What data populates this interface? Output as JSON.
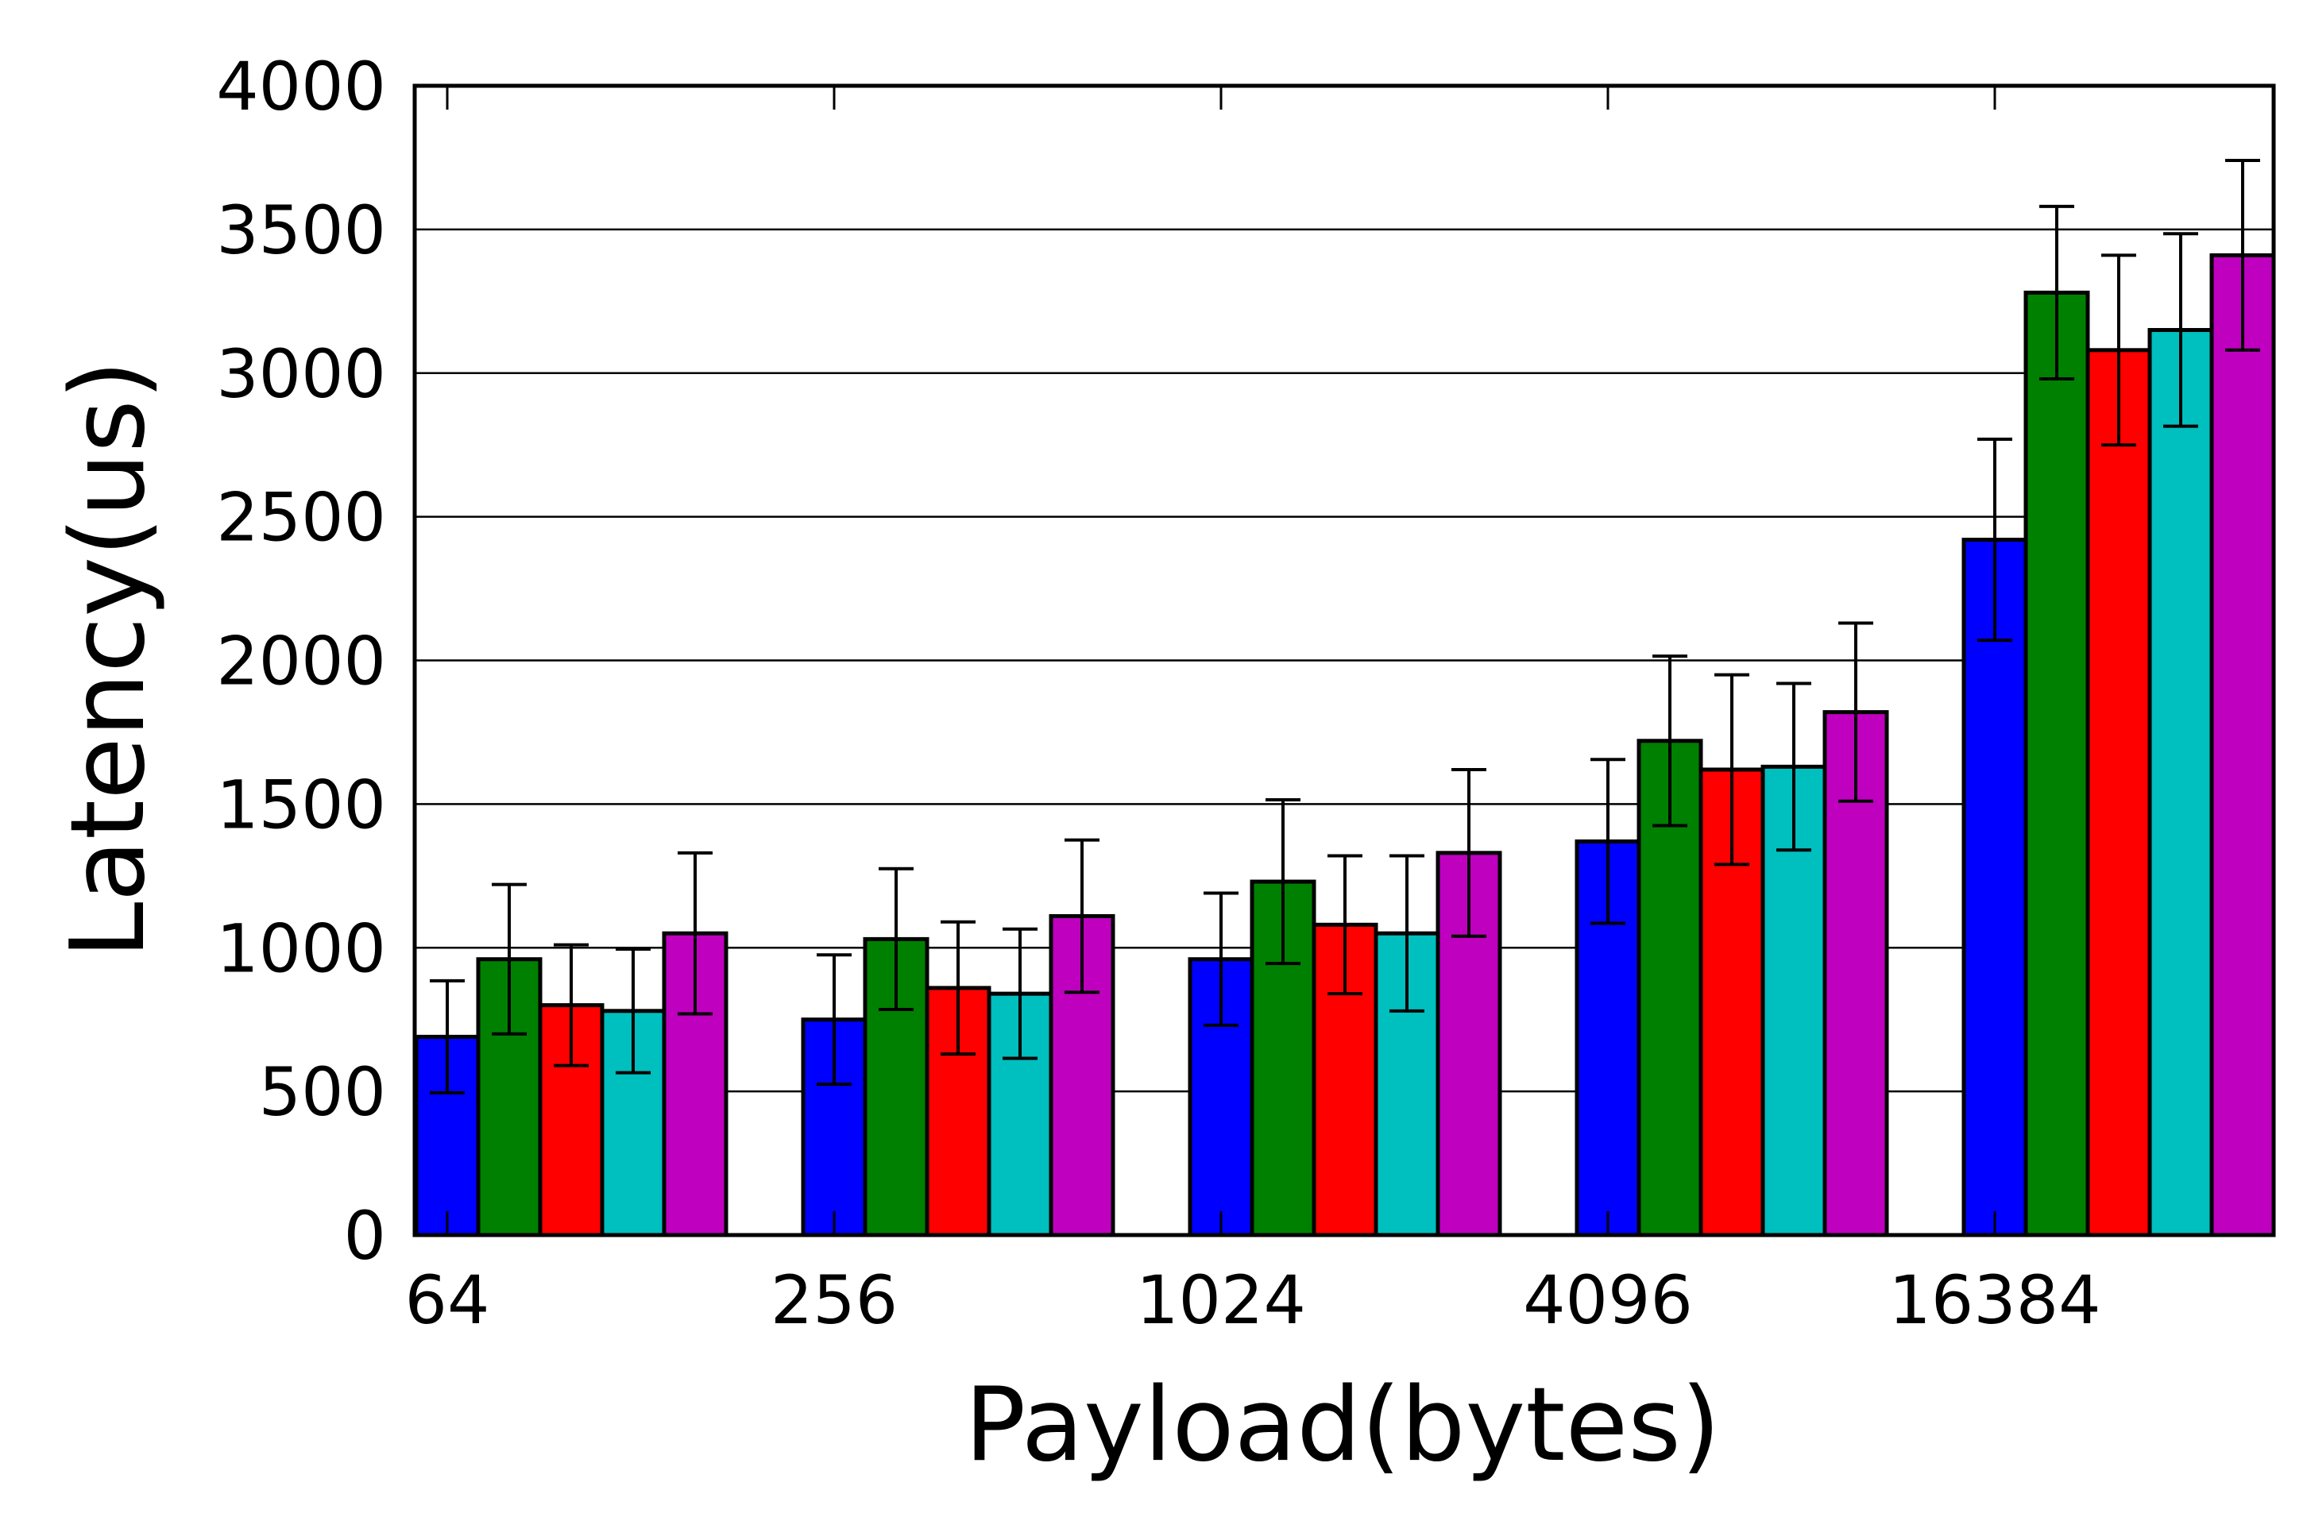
{
  "chart_data": {
    "type": "bar",
    "title": "",
    "xlabel": "Payload(bytes)",
    "ylabel": "Latency(us)",
    "ylim": [
      0,
      4000
    ],
    "yticks": [
      "0",
      "500",
      "1000",
      "1500",
      "2000",
      "2500",
      "3000",
      "3500",
      "4000"
    ],
    "categories": [
      "64",
      "256",
      "1024",
      "4096",
      "16384"
    ],
    "grid": "horizontal",
    "legend": "none",
    "error_bars": true,
    "series": [
      {
        "color": "#0000ff",
        "values": [
          690,
          750,
          960,
          1370,
          2420
        ],
        "errors": [
          195,
          225,
          230,
          285,
          350
        ]
      },
      {
        "color": "#008000",
        "values": [
          960,
          1030,
          1230,
          1720,
          3280
        ],
        "errors": [
          260,
          245,
          285,
          295,
          300
        ]
      },
      {
        "color": "#ff0000",
        "values": [
          800,
          860,
          1080,
          1620,
          3080
        ],
        "errors": [
          210,
          230,
          240,
          330,
          330
        ]
      },
      {
        "color": "#00bfbf",
        "values": [
          780,
          840,
          1050,
          1630,
          3150
        ],
        "errors": [
          215,
          225,
          270,
          290,
          335
        ]
      },
      {
        "color": "#bf00bf",
        "values": [
          1050,
          1110,
          1330,
          1820,
          3410
        ],
        "errors": [
          280,
          265,
          290,
          310,
          330
        ]
      }
    ]
  }
}
